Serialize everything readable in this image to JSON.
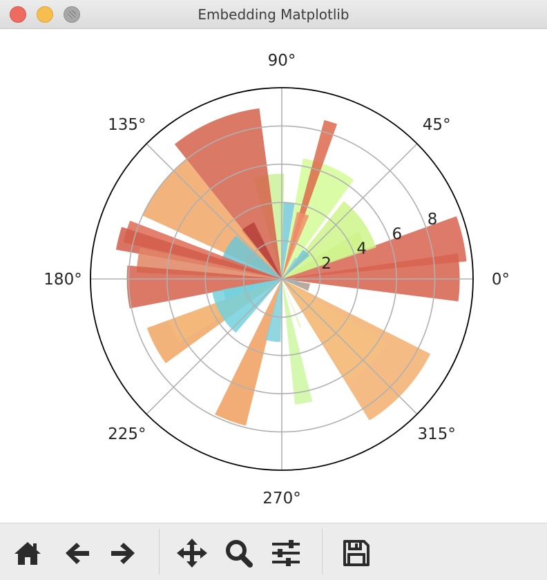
{
  "window": {
    "title": "Embedding Matplotlib"
  },
  "toolbar": {
    "items": [
      {
        "name": "home",
        "icon": "home-icon"
      },
      {
        "name": "back",
        "icon": "arrow-left-icon"
      },
      {
        "name": "forward",
        "icon": "arrow-right-icon"
      },
      {
        "name": "pan",
        "icon": "move-icon"
      },
      {
        "name": "zoom",
        "icon": "zoom-icon"
      },
      {
        "name": "configure",
        "icon": "sliders-icon"
      },
      {
        "name": "save",
        "icon": "save-icon"
      }
    ]
  },
  "chart_data": {
    "type": "bar",
    "projection": "polar",
    "title": "",
    "rlim": [
      0,
      10
    ],
    "rticks": [
      2,
      4,
      6,
      8
    ],
    "rtick_labels": [
      "2",
      "4",
      "6",
      "8"
    ],
    "theta_ticks_deg": [
      0,
      45,
      90,
      135,
      180,
      225,
      270,
      315
    ],
    "theta_tick_labels": [
      "0°",
      "45°",
      "90°",
      "135°",
      "180°",
      "225°",
      "270°",
      "315°"
    ],
    "grid": true,
    "colormap": "Spectral",
    "bar_alpha": 0.85,
    "bars": [
      {
        "theta_deg": 0.5,
        "width_deg": 15.5,
        "r": 9.3,
        "color": "#d5604b"
      },
      {
        "theta_deg": 12.6,
        "width_deg": 14.3,
        "r": 9.7,
        "color": "#d8634f"
      },
      {
        "theta_deg": 26.0,
        "width_deg": 11.5,
        "r": 4.7,
        "color": "#cde890"
      },
      {
        "theta_deg": 35.0,
        "width_deg": 33.0,
        "r": 5.2,
        "color": "#cff48a"
      },
      {
        "theta_deg": 67.0,
        "width_deg": 26.0,
        "r": 6.4,
        "color": "#d5fb98"
      },
      {
        "theta_deg": 47.0,
        "width_deg": 14.0,
        "r": 1.9,
        "color": "#6acad9"
      },
      {
        "theta_deg": 55.0,
        "width_deg": 5.5,
        "r": 1.3,
        "color": "#92d1dc"
      },
      {
        "theta_deg": 72.7,
        "width_deg": 4.7,
        "r": 8.6,
        "color": "#dc6a4c"
      },
      {
        "theta_deg": 72.0,
        "width_deg": 10.5,
        "r": 3.6,
        "color": "#ef8f6d"
      },
      {
        "theta_deg": 86.0,
        "width_deg": 11.5,
        "r": 4.0,
        "color": "#75cad8"
      },
      {
        "theta_deg": 97.2,
        "width_deg": 17.0,
        "r": 5.5,
        "color": "#cdf19b"
      },
      {
        "theta_deg": 118.0,
        "width_deg": 5.5,
        "r": 2.7,
        "color": "#bfe8a0"
      },
      {
        "theta_deg": 113.0,
        "width_deg": 31.0,
        "r": 9.0,
        "color": "#d5624c"
      },
      {
        "theta_deg": 123.0,
        "width_deg": 14.0,
        "r": 3.3,
        "color": "#b5413c"
      },
      {
        "theta_deg": 142.0,
        "width_deg": 27.0,
        "r": 8.0,
        "color": "#f0a665"
      },
      {
        "theta_deg": 146.0,
        "width_deg": 18.0,
        "r": 2.2,
        "color": "#f2b07b"
      },
      {
        "theta_deg": 150.0,
        "width_deg": 27.0,
        "r": 3.3,
        "color": "#6dc6d3"
      },
      {
        "theta_deg": 163.0,
        "width_deg": 8.0,
        "r": 8.5,
        "color": "#de6b55"
      },
      {
        "theta_deg": 166.0,
        "width_deg": 8.0,
        "r": 8.8,
        "color": "#d25c4a"
      },
      {
        "theta_deg": 172.5,
        "width_deg": 10.0,
        "r": 7.6,
        "color": "#e08565"
      },
      {
        "theta_deg": 183.0,
        "width_deg": 16.0,
        "r": 8.1,
        "color": "#d5604b"
      },
      {
        "theta_deg": 197.0,
        "width_deg": 14.0,
        "r": 3.1,
        "color": "#76c6d2"
      },
      {
        "theta_deg": 208.0,
        "width_deg": 16.0,
        "r": 7.5,
        "color": "#f0a664"
      },
      {
        "theta_deg": 206.0,
        "width_deg": 12.0,
        "r": 6.3,
        "color": "#f3b87a"
      },
      {
        "theta_deg": 210.0,
        "width_deg": 39.0,
        "r": 3.7,
        "color": "#72d1dd"
      },
      {
        "theta_deg": 250.0,
        "width_deg": 12.5,
        "r": 7.9,
        "color": "#f09f5f"
      },
      {
        "theta_deg": 262.0,
        "width_deg": 14.0,
        "r": 3.3,
        "color": "#7fcfda"
      },
      {
        "theta_deg": 280.0,
        "width_deg": 8.0,
        "r": 6.6,
        "color": "#ccf7a2"
      },
      {
        "theta_deg": 291.0,
        "width_deg": 2.0,
        "r": 2.7,
        "color": "#e3f4b7"
      },
      {
        "theta_deg": 317.5,
        "width_deg": 31.5,
        "r": 8.7,
        "color": "#f2b06f"
      },
      {
        "theta_deg": 316.0,
        "width_deg": 26.0,
        "r": 6.4,
        "color": "#f3c07f"
      },
      {
        "theta_deg": 343.0,
        "width_deg": 15.0,
        "r": 1.5,
        "color": "#ad9a8e"
      },
      {
        "theta_deg": 347.0,
        "width_deg": 10.0,
        "r": 0.9,
        "color": "#87b8c0"
      },
      {
        "theta_deg": 2.0,
        "width_deg": 5.0,
        "r": 0.7,
        "color": "#c1d98d"
      }
    ]
  }
}
